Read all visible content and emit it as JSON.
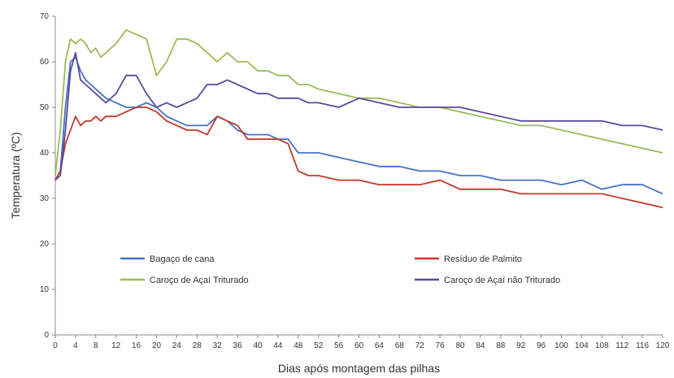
{
  "chart_data": {
    "type": "line",
    "xlabel": "Dias após montagem das pilhas",
    "ylabel": "Temperatura (ºC)",
    "xlim": [
      0,
      120
    ],
    "ylim": [
      0,
      70
    ],
    "x_ticks": [
      0,
      4,
      8,
      12,
      16,
      20,
      24,
      28,
      32,
      36,
      40,
      44,
      48,
      52,
      56,
      60,
      64,
      68,
      72,
      76,
      80,
      84,
      88,
      92,
      96,
      100,
      104,
      108,
      112,
      116,
      120
    ],
    "y_ticks": [
      0,
      10,
      20,
      30,
      40,
      50,
      60,
      70
    ],
    "grid": false,
    "legend": "inside-lower-middle",
    "series": [
      {
        "name": "Bagaço de cana",
        "color": "#4472c4",
        "x": [
          0,
          1,
          2,
          3,
          4,
          5,
          6,
          7,
          8,
          9,
          10,
          12,
          14,
          16,
          18,
          20,
          22,
          24,
          26,
          28,
          30,
          32,
          34,
          36,
          38,
          40,
          42,
          44,
          46,
          48,
          50,
          52,
          56,
          60,
          64,
          68,
          72,
          76,
          80,
          84,
          88,
          92,
          96,
          100,
          104,
          108,
          112,
          116,
          120
        ],
        "y": [
          34,
          36,
          50,
          60,
          61,
          58,
          56,
          55,
          54,
          53,
          52,
          51,
          50,
          50,
          51,
          50,
          48,
          47,
          46,
          46,
          46,
          48,
          47,
          45,
          44,
          44,
          44,
          43,
          43,
          40,
          40,
          40,
          39,
          38,
          37,
          37,
          36,
          36,
          35,
          35,
          34,
          34,
          34,
          33,
          34,
          32,
          33,
          33,
          31
        ]
      },
      {
        "name": "Resíduo de Palmito",
        "color": "#c0392b",
        "x": [
          0,
          1,
          2,
          3,
          4,
          5,
          6,
          7,
          8,
          9,
          10,
          12,
          14,
          16,
          18,
          20,
          22,
          24,
          26,
          28,
          30,
          32,
          34,
          36,
          38,
          40,
          42,
          44,
          46,
          48,
          50,
          52,
          56,
          60,
          64,
          68,
          72,
          76,
          80,
          84,
          88,
          92,
          96,
          100,
          104,
          108,
          112,
          116,
          120
        ],
        "y": [
          34,
          36,
          42,
          45,
          48,
          46,
          47,
          47,
          48,
          47,
          48,
          48,
          49,
          50,
          50,
          49,
          47,
          46,
          45,
          45,
          44,
          48,
          47,
          46,
          43,
          43,
          43,
          43,
          42,
          36,
          35,
          35,
          34,
          34,
          33,
          33,
          33,
          34,
          32,
          32,
          32,
          31,
          31,
          31,
          31,
          31,
          30,
          29,
          28
        ]
      },
      {
        "name": "Caroço de Açaí Triturado",
        "color": "#9bbb59",
        "x": [
          0,
          1,
          2,
          3,
          4,
          5,
          6,
          7,
          8,
          9,
          10,
          12,
          14,
          16,
          18,
          20,
          22,
          24,
          26,
          28,
          30,
          32,
          34,
          36,
          38,
          40,
          42,
          44,
          46,
          48,
          50,
          52,
          56,
          60,
          64,
          68,
          72,
          76,
          80,
          84,
          88,
          92,
          96,
          100,
          104,
          108,
          112,
          116,
          120
        ],
        "y": [
          35,
          45,
          60,
          65,
          64,
          65,
          64,
          62,
          63,
          61,
          62,
          64,
          67,
          66,
          65,
          57,
          60,
          65,
          65,
          64,
          62,
          60,
          62,
          60,
          60,
          58,
          58,
          57,
          57,
          55,
          55,
          54,
          53,
          52,
          52,
          51,
          50,
          50,
          49,
          48,
          47,
          46,
          46,
          45,
          44,
          43,
          42,
          41,
          40
        ]
      },
      {
        "name": "Caroço de Açaí não Triturado",
        "color": "#5b4a9e",
        "x": [
          0,
          1,
          2,
          3,
          4,
          5,
          6,
          7,
          8,
          9,
          10,
          12,
          14,
          16,
          18,
          20,
          22,
          24,
          26,
          28,
          30,
          32,
          34,
          36,
          38,
          40,
          42,
          44,
          46,
          48,
          50,
          52,
          56,
          60,
          64,
          68,
          72,
          76,
          80,
          84,
          88,
          92,
          96,
          100,
          104,
          108,
          112,
          116,
          120
        ],
        "y": [
          34,
          35,
          45,
          58,
          62,
          56,
          55,
          54,
          53,
          52,
          51,
          53,
          57,
          57,
          53,
          50,
          51,
          50,
          51,
          52,
          55,
          55,
          56,
          55,
          54,
          53,
          53,
          52,
          52,
          52,
          51,
          51,
          50,
          52,
          51,
          50,
          50,
          50,
          50,
          49,
          48,
          47,
          47,
          47,
          47,
          47,
          46,
          46,
          45
        ]
      }
    ]
  }
}
